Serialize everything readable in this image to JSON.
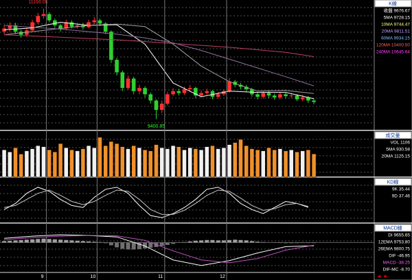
{
  "chart_data": [
    {
      "type": "candlestick",
      "legend_title": "K線",
      "legend": [
        {
          "text": "收盤 9676.67",
          "color": "#ffffff"
        },
        {
          "text": "5MA 9728.15",
          "color": "#ffffff"
        },
        {
          "text": "10MA 9744.47",
          "color": "#ffff80"
        },
        {
          "text": "20MA 9811.51",
          "color": "#c0a0ff"
        },
        {
          "text": "60MA 9934.15",
          "color": "#80c0ff"
        },
        {
          "text": "120MA 10400.50",
          "color": "#ff6060"
        },
        {
          "text": "240MA 10645.64",
          "color": "#ff40ff"
        }
      ],
      "annotations": [
        "11166.05",
        "9400.85"
      ],
      "up_color": "#ff3030",
      "down_color": "#30d030",
      "ylim": [
        9300,
        11250
      ],
      "open": [
        10800,
        10850,
        10900,
        10800,
        10750,
        10820,
        10950,
        11050,
        11080,
        10980,
        10900,
        10850,
        10950,
        10880,
        10900,
        10870,
        10950,
        10980,
        10930,
        10800,
        10350,
        10150,
        9900,
        10050,
        9850,
        9900,
        9800,
        9700,
        9550,
        9650,
        9800,
        9850,
        9820,
        9880,
        9900,
        9780,
        9820,
        9850,
        9760,
        9800,
        9850,
        10000,
        9950,
        9920,
        9880,
        9800,
        9760,
        9820,
        9780,
        9750,
        9800,
        9770,
        9780,
        9720,
        9750,
        9700
      ],
      "high": [
        10900,
        10950,
        10940,
        10830,
        10860,
        10990,
        11100,
        11166.05,
        11110,
        11010,
        10930,
        10990,
        10980,
        10940,
        10940,
        10990,
        11030,
        11010,
        10950,
        10820,
        10380,
        10180,
        10100,
        10080,
        9950,
        9930,
        9830,
        9720,
        9700,
        9840,
        9900,
        9890,
        9920,
        9950,
        9920,
        9860,
        9890,
        9870,
        9840,
        9880,
        10060,
        10030,
        9980,
        9950,
        9900,
        9830,
        9860,
        9850,
        9810,
        9840,
        9830,
        9820,
        9800,
        9790,
        9770,
        9730
      ],
      "low": [
        10760,
        10800,
        10760,
        10700,
        10720,
        10800,
        10920,
        11010,
        10950,
        10860,
        10800,
        10820,
        10850,
        10850,
        10830,
        10850,
        10920,
        10890,
        10760,
        10300,
        10100,
        9850,
        9870,
        9800,
        9800,
        9750,
        9650,
        9400.85,
        9500,
        9620,
        9770,
        9780,
        9790,
        9850,
        9740,
        9750,
        9790,
        9720,
        9730,
        9770,
        9830,
        9910,
        9880,
        9840,
        9760,
        9720,
        9730,
        9740,
        9710,
        9720,
        9730,
        9740,
        9690,
        9690,
        9660,
        9640
      ],
      "close": [
        10850,
        10900,
        10800,
        10750,
        10820,
        10950,
        11050,
        11080,
        10980,
        10900,
        10850,
        10950,
        10880,
        10900,
        10870,
        10950,
        10980,
        10930,
        10800,
        10350,
        10150,
        9900,
        10050,
        9850,
        9900,
        9800,
        9700,
        9550,
        9650,
        9800,
        9850,
        9820,
        9880,
        9900,
        9780,
        9820,
        9850,
        9760,
        9800,
        9850,
        10000,
        9950,
        9920,
        9880,
        9800,
        9760,
        9820,
        9780,
        9750,
        9800,
        9770,
        9780,
        9720,
        9750,
        9700,
        9676.67
      ],
      "lines": [
        {
          "color": "#ffffff",
          "x": [
            0,
            5,
            10,
            15,
            20,
            25,
            30,
            35,
            40,
            45,
            50,
            55
          ],
          "values": [
            10830,
            10860,
            10950,
            10900,
            10910,
            10600,
            9980,
            9760,
            9850,
            9830,
            9830,
            9728.15
          ]
        },
        {
          "color": "#a0a0a0",
          "x": [
            0,
            5,
            10,
            15,
            20,
            25,
            30,
            35,
            40,
            45,
            50,
            55
          ],
          "values": [
            10750,
            10800,
            10850,
            10900,
            10920,
            10880,
            10600,
            10250,
            10000,
            9850,
            9860,
            9811.51
          ]
        },
        {
          "color": "#9070a0",
          "x": [
            0,
            5,
            10,
            15,
            20,
            25,
            30,
            35,
            40,
            45,
            50,
            55
          ],
          "values": [
            10900,
            10870,
            10840,
            10800,
            10760,
            10700,
            10620,
            10500,
            10360,
            10220,
            10080,
            9934.15
          ]
        },
        {
          "color": "#c04060",
          "x": [
            0,
            5,
            10,
            15,
            20,
            25,
            30,
            35,
            40,
            45,
            50,
            55
          ],
          "values": [
            10750,
            10730,
            10710,
            10690,
            10670,
            10640,
            10610,
            10580,
            10550,
            10510,
            10470,
            10400.5
          ]
        }
      ]
    },
    {
      "type": "bar",
      "legend_title": "成交量",
      "legend": [
        {
          "text": "VOL 1106",
          "color": "#ffffff"
        },
        {
          "text": "5MA 930.58",
          "color": "#ffffff"
        },
        {
          "text": "20MA 1125.15",
          "color": "#ffffff"
        }
      ],
      "up_color": "#f0f0f0",
      "down_color": "#f0902c",
      "ylim": [
        0,
        2000
      ],
      "values": [
        1300,
        1200,
        1400,
        1100,
        1250,
        1350,
        1500,
        1450,
        1300,
        1200,
        1600,
        1400,
        1300,
        1250,
        1350,
        1500,
        1400,
        1900,
        1500,
        1700,
        1600,
        1450,
        1350,
        1500,
        1400,
        1300,
        1250,
        1550,
        1400,
        1350,
        1500,
        1450,
        1300,
        1400,
        1350,
        1300,
        1450,
        1500,
        1350,
        1400,
        1550,
        1650,
        1800,
        1500,
        1350,
        1300,
        1250,
        1400,
        1300,
        1350,
        1250,
        1300,
        1200,
        1250,
        1300,
        1106
      ]
    },
    {
      "type": "line",
      "legend_title": "KD線",
      "legend": [
        {
          "text": "9K 35.44",
          "color": "#ffffff"
        },
        {
          "text": "9D 37.46",
          "color": "#ffffff"
        }
      ],
      "ylim": [
        0,
        100
      ],
      "x": [
        0,
        2,
        4,
        6,
        8,
        10,
        12,
        14,
        16,
        18,
        20,
        22,
        24,
        26,
        28,
        30,
        32,
        34,
        36,
        38,
        40,
        42,
        44,
        46,
        48,
        50,
        52,
        54
      ],
      "series": [
        {
          "color": "#ffffff",
          "values": [
            30,
            45,
            70,
            85,
            75,
            55,
            40,
            35,
            60,
            80,
            85,
            70,
            40,
            15,
            10,
            20,
            35,
            55,
            80,
            85,
            70,
            45,
            30,
            20,
            35,
            50,
            45,
            35.44
          ]
        },
        {
          "color": "#c8c8c8",
          "values": [
            35,
            40,
            55,
            70,
            78,
            65,
            50,
            42,
            50,
            65,
            78,
            75,
            55,
            30,
            18,
            18,
            28,
            45,
            65,
            78,
            75,
            58,
            40,
            28,
            32,
            42,
            45,
            37.46
          ]
        }
      ]
    },
    {
      "type": "bar",
      "legend_title": "MACD線",
      "legend": [
        {
          "text": "DI 9655.65",
          "color": "#ffffff"
        },
        {
          "text": "12EMA 9753.80",
          "color": "#ffffff"
        },
        {
          "text": "26EMA 9800.75",
          "color": "#ffffff"
        },
        {
          "text": "DIF -46.95",
          "color": "#ffffff"
        },
        {
          "text": "MACD -38.25",
          "color": "#ff60ff"
        },
        {
          "text": "DIF-MC -8.70",
          "color": "#ffffff"
        }
      ],
      "pos_color": "#a0a0a0",
      "neg_color": "#707070",
      "ylim": [
        -400,
        200
      ],
      "xticks": [
        {
          "value": 8,
          "label": "9"
        },
        {
          "value": 17,
          "label": "10"
        },
        {
          "value": 29,
          "label": "11"
        },
        {
          "value": 40,
          "label": "12"
        }
      ],
      "values": [
        20,
        25,
        30,
        35,
        40,
        45,
        50,
        55,
        50,
        45,
        40,
        35,
        30,
        25,
        20,
        15,
        10,
        5,
        -10,
        -40,
        -70,
        -90,
        -100,
        -100,
        -95,
        -85,
        -75,
        -65,
        -50,
        -35,
        -20,
        -5,
        5,
        15,
        25,
        30,
        35,
        35,
        30,
        30,
        35,
        40,
        35,
        30,
        20,
        10,
        5,
        0,
        -5,
        -8,
        -10,
        -10,
        -9,
        -8,
        -8,
        -8.7
      ],
      "lines": [
        {
          "color": "#ffffff",
          "x": [
            0,
            5,
            10,
            15,
            20,
            25,
            30,
            35,
            40,
            45,
            50,
            55
          ],
          "values": [
            60,
            90,
            110,
            100,
            80,
            -50,
            -250,
            -330,
            -260,
            -150,
            -60,
            -46.95
          ]
        },
        {
          "color": "#c050c0",
          "x": [
            0,
            5,
            10,
            15,
            20,
            25,
            30,
            35,
            40,
            45,
            50,
            55
          ],
          "values": [
            40,
            70,
            90,
            100,
            95,
            30,
            -120,
            -250,
            -290,
            -230,
            -110,
            -38.25
          ]
        }
      ]
    }
  ]
}
